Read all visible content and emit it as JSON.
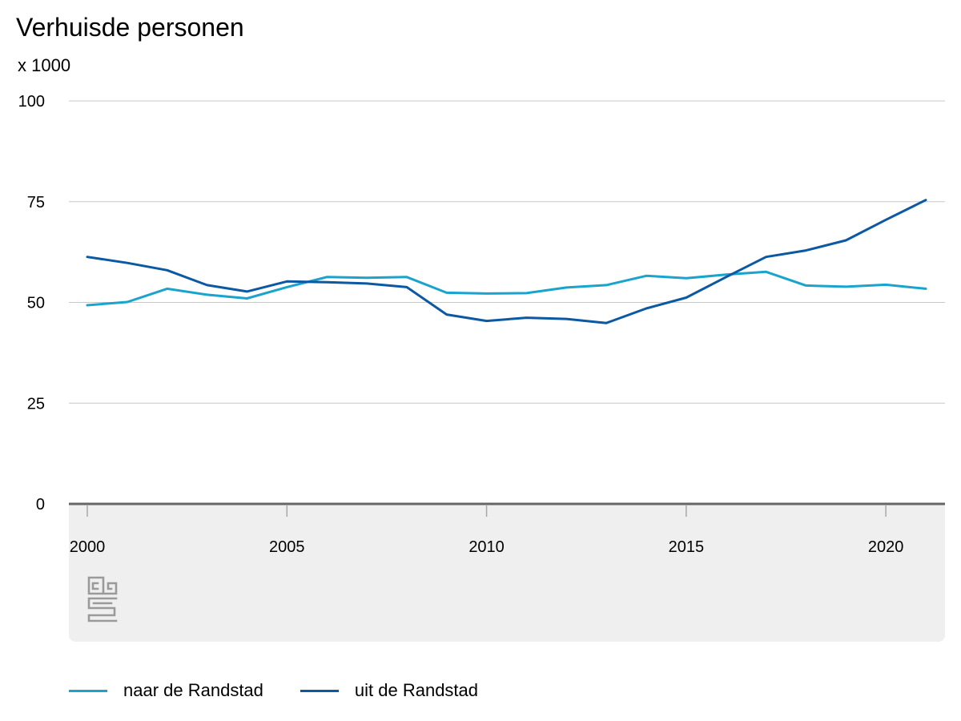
{
  "chart_data": {
    "type": "line",
    "title": "Verhuisde personen",
    "ylabel": "x 1000",
    "xlabel": "",
    "ylim": [
      0,
      100
    ],
    "yticks": [
      0,
      25,
      50,
      75,
      100
    ],
    "xlim": [
      2000,
      2021
    ],
    "xticks": [
      2000,
      2005,
      2010,
      2015,
      2020
    ],
    "grid": true,
    "legend_position": "bottom-left",
    "x": [
      2000,
      2001,
      2002,
      2003,
      2004,
      2005,
      2006,
      2007,
      2008,
      2009,
      2010,
      2011,
      2012,
      2013,
      2014,
      2015,
      2016,
      2017,
      2018,
      2019,
      2020,
      2021
    ],
    "series": [
      {
        "name": "naar de Randstad",
        "color": "#1aa3cc",
        "values": [
          49.3,
          50.1,
          53.4,
          51.9,
          51.0,
          53.8,
          56.3,
          56.1,
          56.3,
          52.4,
          52.2,
          52.3,
          53.7,
          54.3,
          56.6,
          56.0,
          56.9,
          57.6,
          54.2,
          53.9,
          54.4,
          53.4
        ]
      },
      {
        "name": "uit de Randstad",
        "color": "#0b58a3",
        "values": [
          61.3,
          59.8,
          58.0,
          54.3,
          52.7,
          55.2,
          55.0,
          54.7,
          53.8,
          47.0,
          45.4,
          46.2,
          45.9,
          44.9,
          48.5,
          51.2,
          56.3,
          61.3,
          62.9,
          65.4,
          70.5,
          75.4
        ]
      }
    ]
  }
}
